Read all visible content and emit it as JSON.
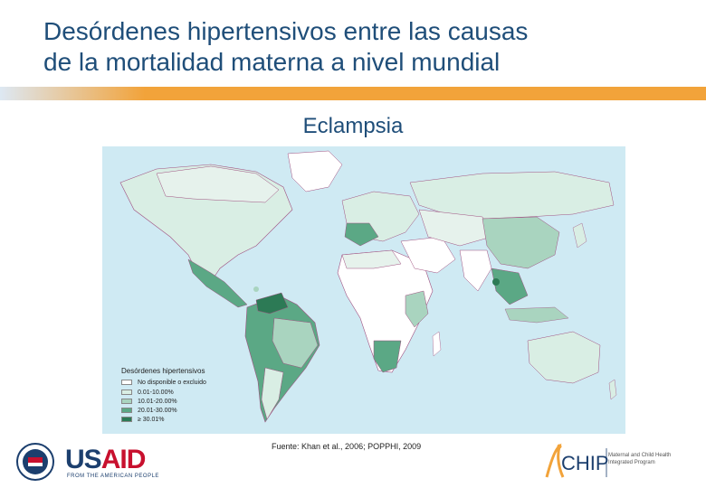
{
  "slide": {
    "title_line1": "Desórdenes hipertensivos entre las causas",
    "title_line2": "de la mortalidad materna a nivel mundial",
    "subtitle": "Eclampsia",
    "source": "Fuente: Khan et al., 2006; POPPHI, 2009"
  },
  "legend": {
    "title": "Desórdenes hipertensivos",
    "items": [
      {
        "label": "No disponible o excluido",
        "color": "#ffffff"
      },
      {
        "label": "0.01-10.00%",
        "color": "#d9eee4"
      },
      {
        "label": "10.01-20.00%",
        "color": "#a9d4bf"
      },
      {
        "label": "20.01-30.00%",
        "color": "#5ba885"
      },
      {
        "label": "≥ 30.01%",
        "color": "#2c7a55"
      }
    ]
  },
  "logos": {
    "usaid_usa": "US",
    "usaid_aid": "AID",
    "usaid_tagline": "FROM THE AMERICAN PEOPLE",
    "chip_word": "CHIP",
    "chip_desc_1": "Maternal and Child Health",
    "chip_desc_2": "Integrated Program"
  },
  "colors": {
    "title": "#1f4e79",
    "accent_bar": "#f2a33a",
    "ocean": "#cfeaf3"
  }
}
